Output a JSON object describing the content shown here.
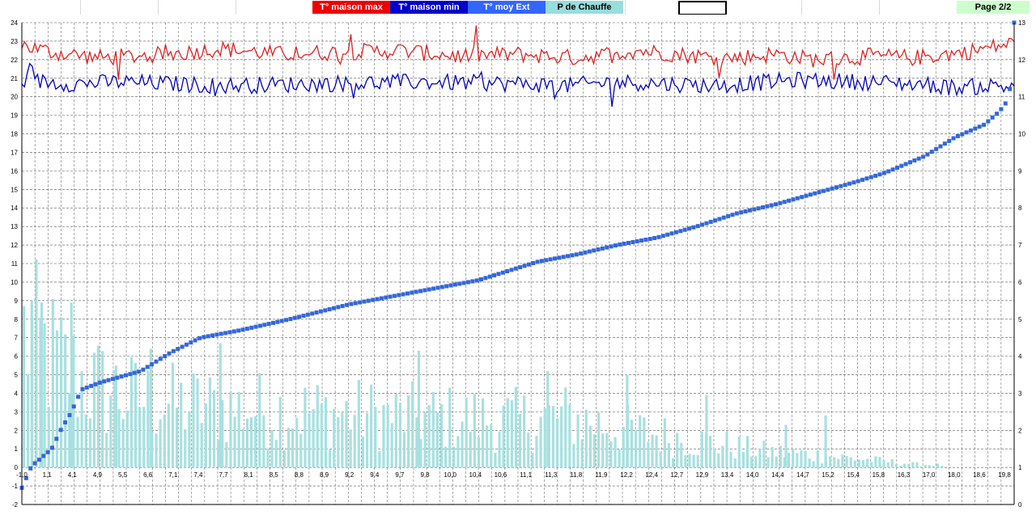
{
  "legend": {
    "max_label": "T° maison max",
    "min_label": "T° maison min",
    "ext_label": "T° moy Ext",
    "chauffe_label": "P  de Chauffe"
  },
  "page_label": "Page  2/2",
  "colors": {
    "max": "#dd2222",
    "min": "#0000bb",
    "ext": "#3366dd",
    "bars": "#a8e0e0",
    "grid": "#555555",
    "legend_max_bg": "#ee0000",
    "legend_min_bg": "#0000cc",
    "legend_ext_bg": "#3366ff",
    "legend_chauffe_bg": "#99dddd"
  },
  "chart_data": {
    "type": "line",
    "left_axis": {
      "min": -2,
      "max": 24,
      "ticks": [
        -2,
        -1,
        0,
        1,
        2,
        3,
        4,
        5,
        6,
        7,
        8,
        9,
        10,
        11,
        12,
        13,
        14,
        15,
        16,
        17,
        18,
        19,
        20,
        21,
        22,
        23,
        24
      ]
    },
    "right_axis": {
      "min": 0,
      "max": 13,
      "ticks": [
        0,
        1,
        2,
        3,
        4,
        5,
        6,
        7,
        8,
        9,
        10,
        11,
        12,
        13
      ]
    },
    "x_tick_labels": [
      "-1,0",
      "1,1",
      "4,1",
      "4,9",
      "5,5",
      "6,6",
      "7,1",
      "7,4",
      "7,7",
      "8,1",
      "8,5",
      "8,8",
      "8,9",
      "9,2",
      "9,4",
      "9,7",
      "9,8",
      "10,0",
      "10,4",
      "10,6",
      "11,1",
      "11,3",
      "11,8",
      "11,9",
      "12,2",
      "12,4",
      "12,7",
      "12,9",
      "13,4",
      "14,0",
      "14,4",
      "14,7",
      "15,2",
      "15,4",
      "15,8",
      "16,3",
      "17,0",
      "18,0",
      "18,6",
      "19,8"
    ],
    "grid": true,
    "series": [
      {
        "name": "T° maison max",
        "axis": "left",
        "style": "line",
        "knots": [
          [
            0,
            22.8
          ],
          [
            0.03,
            22.4
          ],
          [
            0.08,
            22.1
          ],
          [
            0.15,
            22.3
          ],
          [
            0.2,
            22.6
          ],
          [
            0.26,
            22.3
          ],
          [
            0.32,
            22.4
          ],
          [
            0.38,
            22.5
          ],
          [
            0.44,
            22.2
          ],
          [
            0.5,
            22.3
          ],
          [
            0.56,
            22.1
          ],
          [
            0.62,
            22.5
          ],
          [
            0.68,
            22.2
          ],
          [
            0.72,
            22.1
          ],
          [
            0.76,
            22.3
          ],
          [
            0.8,
            22.0
          ],
          [
            0.86,
            22.2
          ],
          [
            0.9,
            22.1
          ],
          [
            0.95,
            22.4
          ],
          [
            1.0,
            22.9
          ]
        ]
      },
      {
        "name": "T° maison min",
        "axis": "left",
        "style": "line",
        "knots": [
          [
            0,
            20.9
          ],
          [
            0.05,
            20.7
          ],
          [
            0.1,
            20.8
          ],
          [
            0.2,
            20.6
          ],
          [
            0.3,
            20.7
          ],
          [
            0.4,
            20.8
          ],
          [
            0.5,
            20.7
          ],
          [
            0.55,
            20.6
          ],
          [
            0.6,
            20.8
          ],
          [
            0.7,
            20.6
          ],
          [
            0.78,
            20.9
          ],
          [
            0.85,
            20.8
          ],
          [
            0.9,
            20.7
          ],
          [
            0.94,
            20.5
          ],
          [
            0.98,
            20.6
          ],
          [
            1.0,
            20.5
          ]
        ]
      },
      {
        "name": "T° moy Ext",
        "axis": "left",
        "style": "points",
        "knots": [
          [
            0,
            -1.1
          ],
          [
            0.005,
            -0.5
          ],
          [
            0.01,
            0.1
          ],
          [
            0.015,
            0.3
          ],
          [
            0.03,
            1.0
          ],
          [
            0.04,
            2.1
          ],
          [
            0.05,
            3.0
          ],
          [
            0.06,
            4.2
          ],
          [
            0.08,
            4.6
          ],
          [
            0.1,
            4.9
          ],
          [
            0.12,
            5.2
          ],
          [
            0.15,
            6.2
          ],
          [
            0.18,
            7.0
          ],
          [
            0.22,
            7.4
          ],
          [
            0.27,
            8.0
          ],
          [
            0.3,
            8.4
          ],
          [
            0.33,
            8.8
          ],
          [
            0.36,
            9.1
          ],
          [
            0.4,
            9.5
          ],
          [
            0.43,
            9.8
          ],
          [
            0.46,
            10.1
          ],
          [
            0.49,
            10.6
          ],
          [
            0.52,
            11.1
          ],
          [
            0.56,
            11.5
          ],
          [
            0.6,
            12.0
          ],
          [
            0.64,
            12.4
          ],
          [
            0.68,
            13.0
          ],
          [
            0.72,
            13.7
          ],
          [
            0.76,
            14.2
          ],
          [
            0.8,
            14.8
          ],
          [
            0.84,
            15.4
          ],
          [
            0.87,
            15.9
          ],
          [
            0.91,
            16.8
          ],
          [
            0.94,
            17.8
          ],
          [
            0.97,
            18.5
          ],
          [
            0.985,
            19.2
          ],
          [
            0.995,
            19.9
          ],
          [
            1.0,
            24.0
          ]
        ]
      },
      {
        "name": "P  de Chauffe",
        "axis": "left",
        "style": "bars",
        "envelope": [
          [
            0,
            8.5
          ],
          [
            0.03,
            7.0
          ],
          [
            0.06,
            5.5
          ],
          [
            0.1,
            4.5
          ],
          [
            0.15,
            4.0
          ],
          [
            0.2,
            3.8
          ],
          [
            0.3,
            3.5
          ],
          [
            0.4,
            3.2
          ],
          [
            0.5,
            3.0
          ],
          [
            0.55,
            3.2
          ],
          [
            0.6,
            2.5
          ],
          [
            0.65,
            2.0
          ],
          [
            0.7,
            1.5
          ],
          [
            0.75,
            1.0
          ],
          [
            0.8,
            0.8
          ],
          [
            0.85,
            0.5
          ],
          [
            0.9,
            0.2
          ],
          [
            1.0,
            0.0
          ]
        ],
        "spikes": [
          [
            0.01,
            9.0
          ],
          [
            0.02,
            8.9
          ],
          [
            0.05,
            8.9
          ],
          [
            0.095,
            5.5
          ],
          [
            0.13,
            6.4
          ],
          [
            0.2,
            6.7
          ],
          [
            0.4,
            6.3
          ],
          [
            0.53,
            5.2
          ],
          [
            0.61,
            5.0
          ],
          [
            0.69,
            3.9
          ],
          [
            0.77,
            2.3
          ],
          [
            0.81,
            2.8
          ]
        ]
      }
    ]
  }
}
